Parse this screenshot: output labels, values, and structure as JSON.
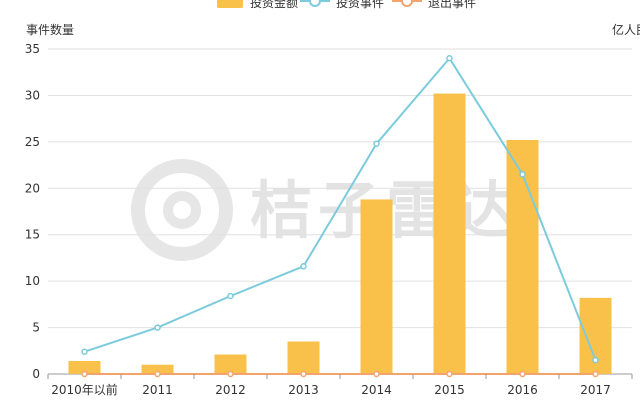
{
  "chart_data": {
    "type": "bar+line",
    "categories": [
      "2010年以前",
      "2011",
      "2012",
      "2013",
      "2014",
      "2015",
      "2016",
      "2017"
    ],
    "series": [
      {
        "name": "投资金额",
        "type": "bar",
        "axis": "right",
        "color": "#fac14a",
        "values": [
          1.4,
          1.0,
          2.1,
          3.5,
          18.8,
          30.2,
          25.2,
          8.2
        ]
      },
      {
        "name": "投资事件",
        "type": "line",
        "axis": "left",
        "color": "#7ccbdc",
        "values": [
          2.4,
          5.0,
          8.4,
          11.6,
          24.8,
          34.0,
          21.5,
          1.5
        ]
      },
      {
        "name": "退出事件",
        "type": "line",
        "axis": "left",
        "color": "#f5a36c",
        "values": [
          0,
          0,
          0,
          0,
          0,
          0,
          0,
          0
        ]
      }
    ],
    "ylabel": "事件数量",
    "y2label": "亿人民币",
    "ylim": [
      0,
      35
    ],
    "yticks": [
      0,
      5,
      10,
      15,
      20,
      25,
      30,
      35
    ],
    "y2lim": [
      0,
      35
    ],
    "grid": true,
    "legend": "top-center"
  },
  "watermark": {
    "text": "桔子雷达",
    "color": "#e3e3e3"
  }
}
